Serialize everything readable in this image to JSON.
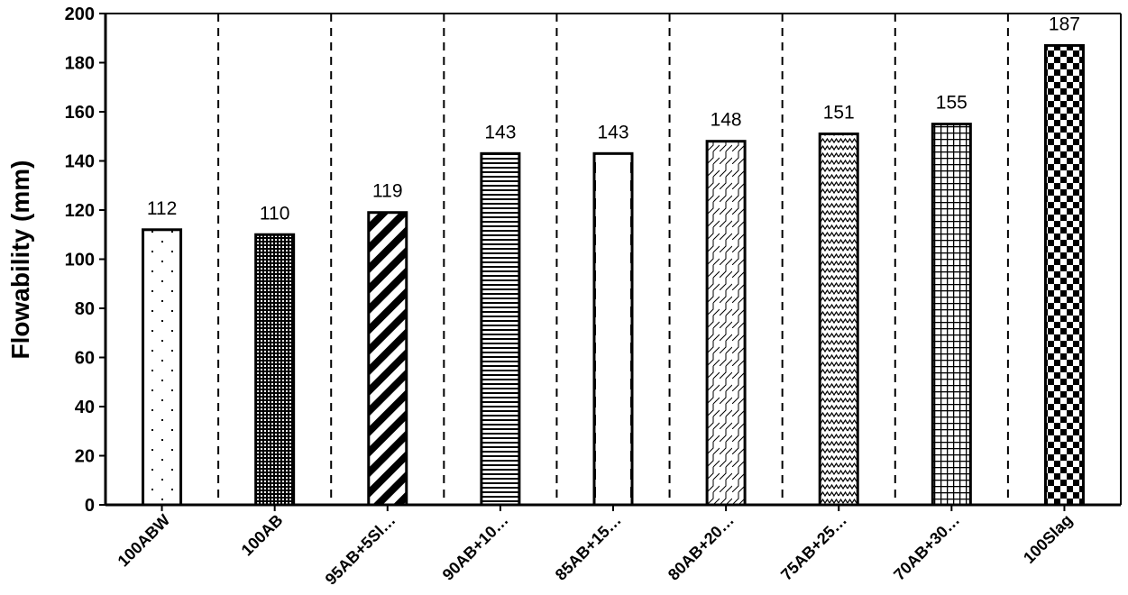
{
  "chart_data": {
    "type": "bar",
    "categories": [
      "100ABW",
      "100AB",
      "95AB+5Sl…",
      "90AB+10…",
      "85AB+15…",
      "80AB+20…",
      "75AB+25…",
      "70AB+30…",
      "100Slag"
    ],
    "values": [
      112,
      110,
      119,
      143,
      143,
      148,
      151,
      155,
      187
    ],
    "data_labels": [
      "112",
      "110",
      "119",
      "143",
      "143",
      "148",
      "151",
      "155",
      "187"
    ],
    "patterns": [
      "dots",
      "dense-grid",
      "diagonal-stripes",
      "horizontal-lines",
      "dashed-vertical",
      "zigzag-diagonal",
      "wave",
      "grid",
      "checkerboard"
    ],
    "ylabel": "Flowability (mm)",
    "xlabel": "",
    "ylim": [
      0,
      200
    ],
    "yticks": [
      "0",
      "20",
      "40",
      "60",
      "80",
      "100",
      "120",
      "140",
      "160",
      "180",
      "200"
    ],
    "grid": "vertical dashed separators between categories",
    "colors": {
      "bar_stroke": "#000000",
      "bar_fill": "#ffffff",
      "axis": "#000000"
    }
  }
}
